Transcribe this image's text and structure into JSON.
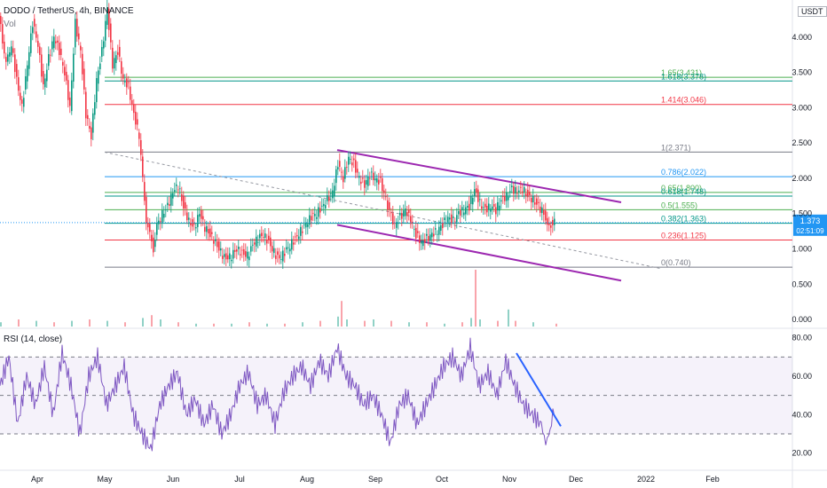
{
  "header": {
    "symbol_line": "DODO / TetherUS, 4h, BINANCE",
    "vol_label": "Vol"
  },
  "currency_label": "USDT",
  "price_axis": {
    "ticks": [
      "4.000",
      "3.500",
      "3.000",
      "2.500",
      "2.000",
      "1.500",
      "1.000",
      "0.500",
      "0.000"
    ],
    "tick_values": [
      4.0,
      3.5,
      3.0,
      2.5,
      2.0,
      1.5,
      1.0,
      0.5,
      0.0
    ]
  },
  "rsi": {
    "label": "RSI (14, close)",
    "ticks": [
      "80.00",
      "60.00",
      "40.00",
      "20.00"
    ],
    "tick_values": [
      80,
      60,
      40,
      20
    ],
    "upper_band": 70,
    "lower_band": 30,
    "mid_line": 50
  },
  "time_axis": {
    "labels": [
      "Apr",
      "May",
      "Jun",
      "Jul",
      "Aug",
      "Sep",
      "Oct",
      "Nov",
      "Dec",
      "2022",
      "Feb"
    ]
  },
  "last_price": {
    "value": "1.373",
    "countdown": "02:51:09",
    "color": "#2196f3"
  },
  "chart_data": {
    "type": "candlestick",
    "title": "DODO / TetherUS, 4h, BINANCE",
    "ylim": [
      -0.1,
      4.4
    ],
    "fib_levels": [
      {
        "label": "1.65(3.431)",
        "value": 3.431,
        "color": "#4caf50"
      },
      {
        "label": "1.618(3.378)",
        "value": 3.378,
        "color": "#009688"
      },
      {
        "label": "1.414(3.046)",
        "value": 3.046,
        "color": "#f23645"
      },
      {
        "label": "1(2.371)",
        "value": 2.371,
        "color": "#787b86"
      },
      {
        "label": "0.786(2.022)",
        "value": 2.022,
        "color": "#2196f3"
      },
      {
        "label": "0.65(1.800)",
        "value": 1.8,
        "color": "#4caf50"
      },
      {
        "label": "0.618(1.748)",
        "value": 1.748,
        "color": "#009688"
      },
      {
        "label": "0.5(1.555)",
        "value": 1.555,
        "color": "#4caf50"
      },
      {
        "label": "0.382(1.363)",
        "value": 1.363,
        "color": "#009688"
      },
      {
        "label": "0.236(1.125)",
        "value": 1.125,
        "color": "#f23645"
      },
      {
        "label": "0(0.740)",
        "value": 0.74,
        "color": "#787b86"
      }
    ],
    "price_path": [
      [
        0,
        4.3
      ],
      [
        8,
        3.6
      ],
      [
        14,
        3.9
      ],
      [
        20,
        3.4
      ],
      [
        26,
        3.0
      ],
      [
        32,
        3.6
      ],
      [
        38,
        4.2
      ],
      [
        44,
        3.9
      ],
      [
        50,
        3.3
      ],
      [
        56,
        3.7
      ],
      [
        62,
        4.0
      ],
      [
        68,
        3.8
      ],
      [
        74,
        3.5
      ],
      [
        80,
        3.0
      ],
      [
        86,
        4.2
      ],
      [
        92,
        3.8
      ],
      [
        98,
        2.9
      ],
      [
        104,
        2.6
      ],
      [
        110,
        3.4
      ],
      [
        116,
        3.8
      ],
      [
        122,
        4.4
      ],
      [
        128,
        3.6
      ],
      [
        134,
        3.8
      ],
      [
        140,
        3.4
      ],
      [
        146,
        3.3
      ],
      [
        152,
        2.9
      ],
      [
        158,
        2.6
      ],
      [
        162,
        2.0
      ],
      [
        166,
        1.4
      ],
      [
        170,
        1.2
      ],
      [
        174,
        1.0
      ],
      [
        178,
        1.3
      ],
      [
        184,
        1.5
      ],
      [
        190,
        1.6
      ],
      [
        196,
        1.8
      ],
      [
        202,
        1.9
      ],
      [
        208,
        1.6
      ],
      [
        214,
        1.4
      ],
      [
        220,
        1.3
      ],
      [
        226,
        1.5
      ],
      [
        232,
        1.3
      ],
      [
        238,
        1.2
      ],
      [
        244,
        1.1
      ],
      [
        250,
        0.95
      ],
      [
        256,
        0.85
      ],
      [
        262,
        0.9
      ],
      [
        268,
        1.0
      ],
      [
        274,
        0.95
      ],
      [
        280,
        0.9
      ],
      [
        286,
        1.05
      ],
      [
        292,
        1.15
      ],
      [
        298,
        1.2
      ],
      [
        304,
        1.1
      ],
      [
        310,
        0.95
      ],
      [
        316,
        0.85
      ],
      [
        322,
        0.95
      ],
      [
        328,
        1.05
      ],
      [
        334,
        1.15
      ],
      [
        340,
        1.25
      ],
      [
        346,
        1.35
      ],
      [
        352,
        1.45
      ],
      [
        358,
        1.5
      ],
      [
        364,
        1.6
      ],
      [
        370,
        1.7
      ],
      [
        376,
        1.8
      ],
      [
        382,
        2.2
      ],
      [
        388,
        2.0
      ],
      [
        394,
        2.3
      ],
      [
        400,
        2.2
      ],
      [
        406,
        2.0
      ],
      [
        412,
        1.9
      ],
      [
        418,
        2.05
      ],
      [
        424,
        2.0
      ],
      [
        430,
        1.95
      ],
      [
        436,
        1.7
      ],
      [
        440,
        1.5
      ],
      [
        446,
        1.35
      ],
      [
        452,
        1.45
      ],
      [
        458,
        1.55
      ],
      [
        464,
        1.4
      ],
      [
        470,
        1.2
      ],
      [
        476,
        1.1
      ],
      [
        482,
        1.15
      ],
      [
        488,
        1.2
      ],
      [
        494,
        1.25
      ],
      [
        500,
        1.35
      ],
      [
        506,
        1.45
      ],
      [
        512,
        1.4
      ],
      [
        518,
        1.5
      ],
      [
        524,
        1.55
      ],
      [
        530,
        1.6
      ],
      [
        536,
        1.85
      ],
      [
        542,
        1.65
      ],
      [
        548,
        1.55
      ],
      [
        554,
        1.6
      ],
      [
        560,
        1.55
      ],
      [
        566,
        1.7
      ],
      [
        572,
        1.75
      ],
      [
        578,
        1.85
      ],
      [
        584,
        1.8
      ],
      [
        590,
        1.85
      ],
      [
        596,
        1.75
      ],
      [
        602,
        1.7
      ],
      [
        608,
        1.6
      ],
      [
        614,
        1.5
      ],
      [
        618,
        1.3
      ],
      [
        622,
        1.35
      ],
      [
        626,
        1.37
      ]
    ],
    "rsi_path": [
      [
        0,
        55
      ],
      [
        10,
        70
      ],
      [
        20,
        35
      ],
      [
        30,
        60
      ],
      [
        40,
        45
      ],
      [
        50,
        65
      ],
      [
        60,
        40
      ],
      [
        70,
        72
      ],
      [
        80,
        55
      ],
      [
        90,
        30
      ],
      [
        100,
        60
      ],
      [
        110,
        70
      ],
      [
        120,
        45
      ],
      [
        130,
        55
      ],
      [
        140,
        65
      ],
      [
        150,
        40
      ],
      [
        160,
        30
      ],
      [
        170,
        22
      ],
      [
        180,
        45
      ],
      [
        190,
        55
      ],
      [
        200,
        62
      ],
      [
        210,
        40
      ],
      [
        220,
        48
      ],
      [
        230,
        35
      ],
      [
        240,
        45
      ],
      [
        250,
        30
      ],
      [
        260,
        40
      ],
      [
        270,
        55
      ],
      [
        280,
        62
      ],
      [
        290,
        45
      ],
      [
        300,
        50
      ],
      [
        310,
        35
      ],
      [
        320,
        52
      ],
      [
        330,
        60
      ],
      [
        340,
        65
      ],
      [
        350,
        55
      ],
      [
        360,
        68
      ],
      [
        370,
        60
      ],
      [
        380,
        75
      ],
      [
        390,
        60
      ],
      [
        400,
        55
      ],
      [
        410,
        45
      ],
      [
        420,
        50
      ],
      [
        430,
        40
      ],
      [
        440,
        25
      ],
      [
        450,
        45
      ],
      [
        460,
        50
      ],
      [
        470,
        35
      ],
      [
        480,
        45
      ],
      [
        490,
        55
      ],
      [
        500,
        65
      ],
      [
        510,
        70
      ],
      [
        520,
        60
      ],
      [
        530,
        75
      ],
      [
        540,
        55
      ],
      [
        550,
        62
      ],
      [
        560,
        50
      ],
      [
        570,
        68
      ],
      [
        580,
        55
      ],
      [
        590,
        45
      ],
      [
        600,
        40
      ],
      [
        610,
        35
      ],
      [
        615,
        25
      ],
      [
        620,
        32
      ],
      [
        626,
        48
      ]
    ],
    "volume_path": [
      [
        0,
        0.03
      ],
      [
        20,
        0.05
      ],
      [
        40,
        0.04
      ],
      [
        60,
        0.03
      ],
      [
        80,
        0.04
      ],
      [
        100,
        0.05
      ],
      [
        120,
        0.04
      ],
      [
        140,
        0.03
      ],
      [
        160,
        0.06
      ],
      [
        170,
        0.08
      ],
      [
        180,
        0.05
      ],
      [
        200,
        0.03
      ],
      [
        220,
        0.02
      ],
      [
        240,
        0.02
      ],
      [
        260,
        0.02
      ],
      [
        280,
        0.03
      ],
      [
        300,
        0.02
      ],
      [
        320,
        0.02
      ],
      [
        340,
        0.03
      ],
      [
        360,
        0.04
      ],
      [
        380,
        0.07
      ],
      [
        384,
        0.18
      ],
      [
        390,
        0.05
      ],
      [
        410,
        0.04
      ],
      [
        420,
        0.05
      ],
      [
        440,
        0.04
      ],
      [
        460,
        0.03
      ],
      [
        480,
        0.03
      ],
      [
        500,
        0.02
      ],
      [
        520,
        0.03
      ],
      [
        530,
        0.06
      ],
      [
        535,
        0.4
      ],
      [
        540,
        0.05
      ],
      [
        560,
        0.04
      ],
      [
        572,
        0.12
      ],
      [
        580,
        0.04
      ],
      [
        600,
        0.03
      ],
      [
        626,
        0.02
      ]
    ]
  }
}
